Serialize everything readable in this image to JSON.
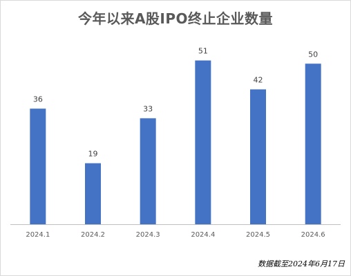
{
  "chart_data": {
    "type": "bar",
    "title": "今年以来A股IPO终止企业数量",
    "categories": [
      "2024.1",
      "2024.2",
      "2024.3",
      "2024.4",
      "2024.5",
      "2024.6"
    ],
    "values": [
      36,
      19,
      33,
      51,
      42,
      50
    ],
    "xlabel": "",
    "ylabel": "",
    "ylim": [
      0,
      55
    ],
    "grid": false,
    "legend": "none",
    "bar_color": "#4472c4",
    "data_labels": true,
    "note": "数据截至2024年6月17日"
  }
}
